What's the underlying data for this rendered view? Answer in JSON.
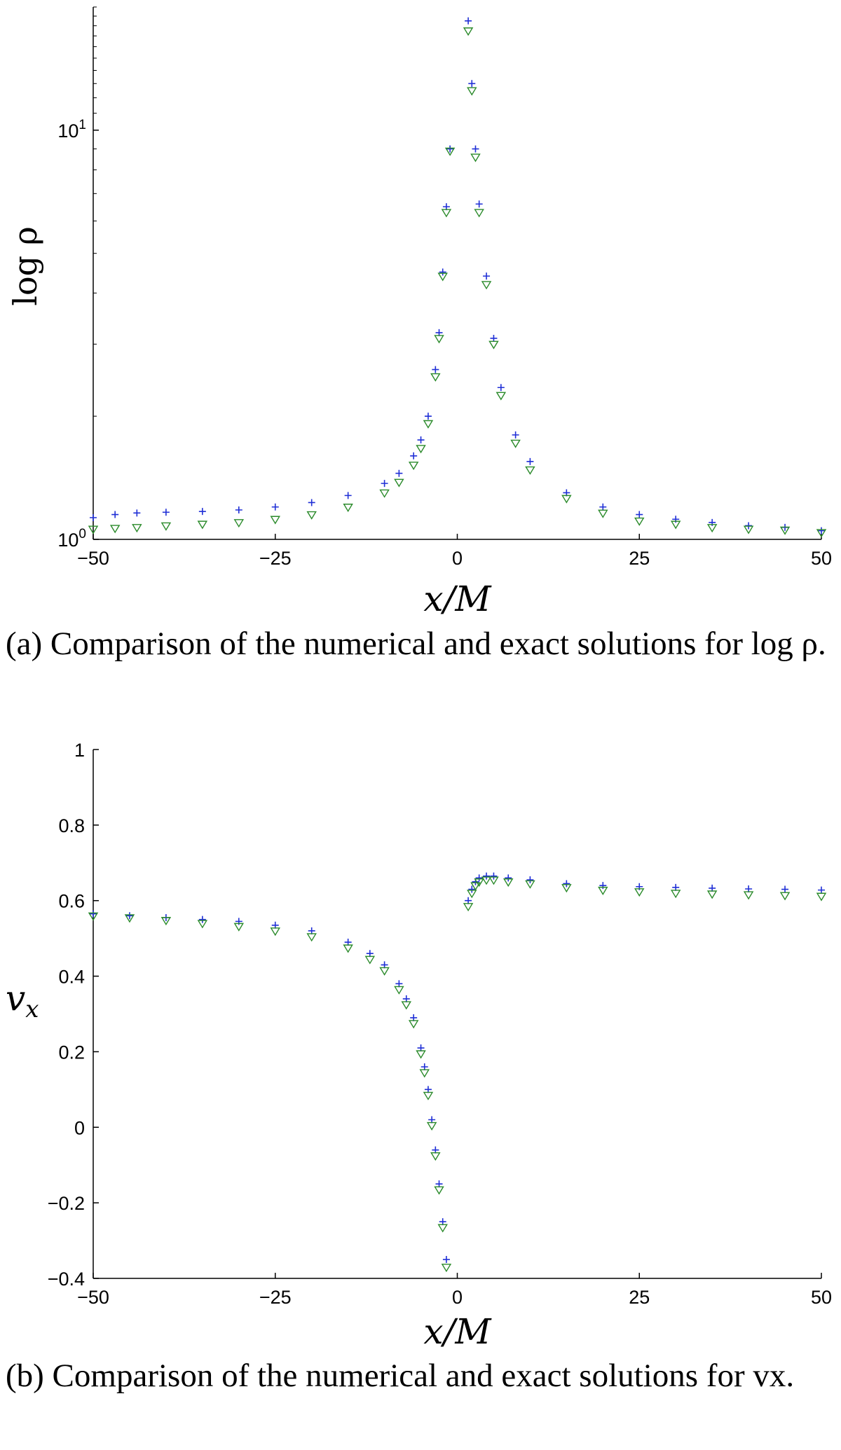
{
  "chart_data": [
    {
      "type": "scatter",
      "title": "",
      "xlabel": "x/M",
      "ylabel": "log ρ",
      "xlim": [
        -50,
        50
      ],
      "ylim": [
        1,
        20
      ],
      "log_y": true,
      "x_ticks": [
        "−50",
        "−25",
        "0",
        "25",
        "50"
      ],
      "x_tick_values": [
        -50,
        -25,
        0,
        25,
        50
      ],
      "y_ticks": [
        {
          "value": 1,
          "base": "10",
          "exp": "0"
        },
        {
          "value": 10,
          "base": "10",
          "exp": "1"
        }
      ],
      "grid": false,
      "series": [
        {
          "marker": "plus",
          "color": "#1f2fd6",
          "x": [
            -50,
            -47,
            -44,
            -40,
            -35,
            -30,
            -25,
            -20,
            -15,
            -10,
            -8,
            -6,
            -5,
            -4,
            -3,
            -2.5,
            -2,
            -1.5,
            -1,
            1.5,
            2,
            2.5,
            3,
            4,
            5,
            6,
            8,
            10,
            15,
            20,
            25,
            30,
            35,
            40,
            45,
            50
          ],
          "y": [
            1.13,
            1.15,
            1.16,
            1.165,
            1.17,
            1.18,
            1.2,
            1.23,
            1.28,
            1.37,
            1.45,
            1.6,
            1.75,
            2.0,
            2.6,
            3.2,
            4.5,
            6.5,
            9.0,
            18.5,
            13.0,
            9.0,
            6.6,
            4.4,
            3.1,
            2.35,
            1.8,
            1.55,
            1.3,
            1.2,
            1.15,
            1.12,
            1.1,
            1.08,
            1.07,
            1.05
          ]
        },
        {
          "marker": "triangle-down",
          "color": "#2a8a2a",
          "x": [
            -50,
            -47,
            -44,
            -40,
            -35,
            -30,
            -25,
            -20,
            -15,
            -10,
            -8,
            -6,
            -5,
            -4,
            -3,
            -2.5,
            -2,
            -1.5,
            -1,
            1.5,
            2,
            2.5,
            3,
            4,
            5,
            6,
            8,
            10,
            15,
            20,
            25,
            30,
            35,
            40,
            45,
            50
          ],
          "y": [
            1.06,
            1.065,
            1.07,
            1.08,
            1.09,
            1.1,
            1.12,
            1.15,
            1.2,
            1.3,
            1.38,
            1.52,
            1.67,
            1.92,
            2.5,
            3.1,
            4.4,
            6.3,
            8.9,
            17.5,
            12.5,
            8.6,
            6.3,
            4.2,
            3.0,
            2.25,
            1.72,
            1.48,
            1.26,
            1.16,
            1.11,
            1.09,
            1.07,
            1.06,
            1.055,
            1.04
          ]
        }
      ]
    },
    {
      "type": "scatter",
      "title": "",
      "xlabel": "x/M",
      "ylabel": "v_x",
      "xlim": [
        -50,
        50
      ],
      "ylim": [
        -0.4,
        1
      ],
      "log_y": false,
      "x_ticks": [
        "−50",
        "−25",
        "0",
        "25",
        "50"
      ],
      "x_tick_values": [
        -50,
        -25,
        0,
        25,
        50
      ],
      "y_ticks": [
        "−0.4",
        "−0.2",
        "0",
        "0.2",
        "0.4",
        "0.6",
        "0.8",
        "1"
      ],
      "y_tick_values": [
        -0.4,
        -0.2,
        0,
        0.2,
        0.4,
        0.6,
        0.8,
        1
      ],
      "grid": false,
      "series": [
        {
          "marker": "plus",
          "color": "#1f2fd6",
          "x": [
            -50,
            -45,
            -40,
            -35,
            -30,
            -25,
            -20,
            -15,
            -12,
            -10,
            -8,
            -7,
            -6,
            -5,
            -4.5,
            -4,
            -3.5,
            -3,
            -2.5,
            -2,
            -1.5,
            1.5,
            2,
            2.5,
            3,
            4,
            5,
            7,
            10,
            15,
            20,
            25,
            30,
            35,
            40,
            45,
            50
          ],
          "y": [
            0.565,
            0.56,
            0.555,
            0.55,
            0.545,
            0.535,
            0.52,
            0.49,
            0.46,
            0.43,
            0.38,
            0.34,
            0.29,
            0.21,
            0.16,
            0.1,
            0.02,
            -0.06,
            -0.15,
            -0.25,
            -0.35,
            0.6,
            0.63,
            0.65,
            0.66,
            0.665,
            0.665,
            0.66,
            0.655,
            0.645,
            0.64,
            0.637,
            0.635,
            0.633,
            0.631,
            0.63,
            0.628
          ]
        },
        {
          "marker": "triangle-down",
          "color": "#2a8a2a",
          "x": [
            -50,
            -45,
            -40,
            -35,
            -30,
            -25,
            -20,
            -15,
            -12,
            -10,
            -8,
            -7,
            -6,
            -5,
            -4.5,
            -4,
            -3.5,
            -3,
            -2.5,
            -2,
            -1.5,
            1.5,
            2,
            2.5,
            3,
            4,
            5,
            7,
            10,
            15,
            20,
            25,
            30,
            35,
            40,
            45,
            50
          ],
          "y": [
            0.56,
            0.555,
            0.548,
            0.54,
            0.532,
            0.52,
            0.505,
            0.475,
            0.445,
            0.415,
            0.365,
            0.325,
            0.275,
            0.195,
            0.145,
            0.085,
            0.005,
            -0.075,
            -0.165,
            -0.265,
            -0.37,
            0.585,
            0.62,
            0.64,
            0.65,
            0.655,
            0.655,
            0.65,
            0.645,
            0.635,
            0.628,
            0.624,
            0.62,
            0.618,
            0.616,
            0.614,
            0.612
          ]
        }
      ]
    }
  ],
  "captions": {
    "a": "(a) Comparison of the numerical and exact solutions for log ρ.",
    "b": "(b) Comparison of the numerical and exact solutions for vx."
  }
}
